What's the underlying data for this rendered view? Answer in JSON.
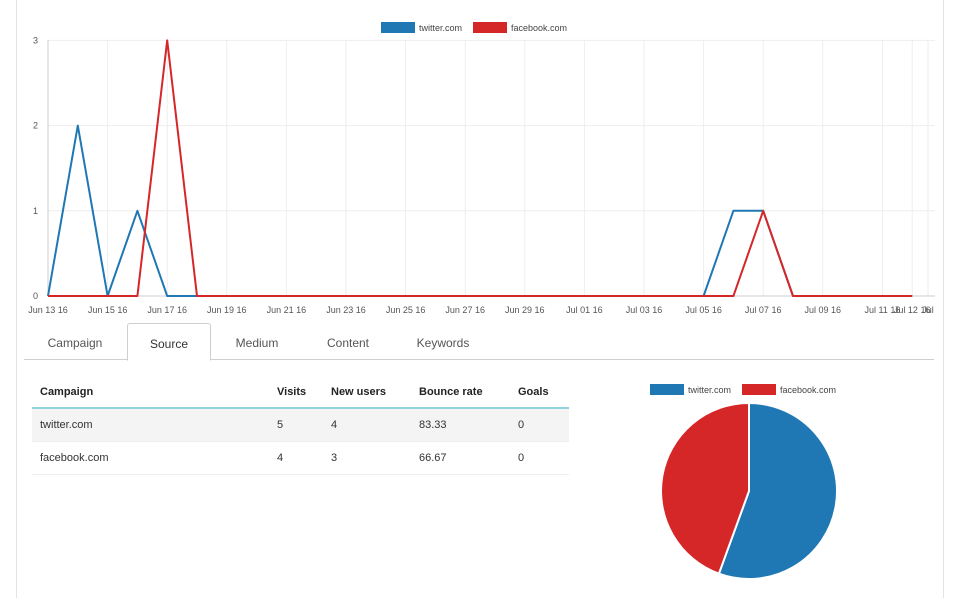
{
  "colors": {
    "twitter": "#1f77b4",
    "facebook": "#d62728"
  },
  "chart_data": [
    {
      "type": "line",
      "series": [
        {
          "name": "twitter.com",
          "color": "#1f77b4",
          "points": [
            [
              "Jun 13 16",
              0
            ],
            [
              "Jun 14 16",
              2
            ],
            [
              "Jun 15 16",
              0
            ],
            [
              "Jun 16 16",
              1
            ],
            [
              "Jun 17 16",
              0
            ],
            [
              "Jun 18 16",
              0
            ],
            [
              "Jul 05 16",
              0
            ],
            [
              "Jul 06 16",
              1
            ],
            [
              "Jul 07 16",
              1
            ],
            [
              "Jul 08 16",
              0
            ],
            [
              "Jul 12 16",
              0
            ]
          ]
        },
        {
          "name": "facebook.com",
          "color": "#d62728",
          "points": [
            [
              "Jun 13 16",
              0
            ],
            [
              "Jun 15 16",
              0
            ],
            [
              "Jun 16 16",
              0
            ],
            [
              "Jun 17 16",
              3
            ],
            [
              "Jun 18 16",
              0
            ],
            [
              "Jul 06 16",
              0
            ],
            [
              "Jul 07 16",
              1
            ],
            [
              "Jul 08 16",
              0
            ],
            [
              "Jul 12 16",
              0
            ]
          ]
        }
      ],
      "ylim": [
        0,
        3
      ],
      "y_ticks": [
        "0",
        "1",
        "2",
        "3"
      ],
      "x_ticks": [
        "Jun 13 16",
        "Jun 15 16",
        "Jun 17 16",
        "Jun 19 16",
        "Jun 21 16",
        "Jun 23 16",
        "Jun 25 16",
        "Jun 27 16",
        "Jun 29 16",
        "Jul 01 16",
        "Jul 03 16",
        "Jul 05 16",
        "Jul 07 16",
        "Jul 09 16",
        "Jul 11 16",
        "Jul 12 16",
        "Jul"
      ],
      "grid": true,
      "legend": "top-center"
    },
    {
      "type": "pie",
      "slices": [
        {
          "name": "twitter.com",
          "value": 5,
          "color": "#1f77b4"
        },
        {
          "name": "facebook.com",
          "value": 4,
          "color": "#d62728"
        }
      ],
      "legend": "top-center"
    }
  ],
  "tabs": [
    {
      "label": "Campaign",
      "active": false
    },
    {
      "label": "Source",
      "active": true
    },
    {
      "label": "Medium",
      "active": false
    },
    {
      "label": "Content",
      "active": false
    },
    {
      "label": "Keywords",
      "active": false
    }
  ],
  "table": {
    "headers": {
      "campaign": "Campaign",
      "visits": "Visits",
      "new_users": "New users",
      "bounce_rate": "Bounce rate",
      "goals": "Goals"
    },
    "rows": [
      {
        "campaign": "twitter.com",
        "visits": "5",
        "new_users": "4",
        "bounce_rate": "83.33",
        "goals": "0"
      },
      {
        "campaign": "facebook.com",
        "visits": "4",
        "new_users": "3",
        "bounce_rate": "66.67",
        "goals": "0"
      }
    ]
  }
}
